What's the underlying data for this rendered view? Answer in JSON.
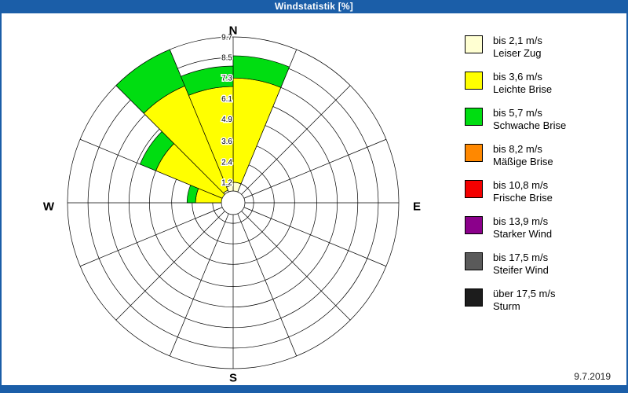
{
  "window": {
    "title": "Windstatistik [%]"
  },
  "date_label": "9.7.2019",
  "compass": {
    "north": "N",
    "east": "E",
    "south": "S",
    "west": "W"
  },
  "colors": {
    "chrome_blue": "#1b5ea8",
    "grid": "#000000"
  },
  "chart_data": {
    "type": "windrose-stacked-polar-bar",
    "title": "Windstatistik [%]",
    "units": "%",
    "max_value": 9.7,
    "ring_values": [
      1.2,
      2.4,
      3.6,
      4.9,
      6.1,
      7.3,
      8.5,
      9.7
    ],
    "ring_labels": [
      "1.2",
      "2.4",
      "3.6",
      "4.9",
      "6.1",
      "7.3",
      "8.5",
      "9.7"
    ],
    "sector_width_deg": 22.5,
    "sector_note": "each wedge spans clockwise from the named compass spoke",
    "sectors": [
      "N",
      "NNE",
      "NE",
      "ENE",
      "E",
      "ESE",
      "SE",
      "SSE",
      "S",
      "SSW",
      "SW",
      "WSW",
      "W",
      "WNW",
      "NW",
      "NNW"
    ],
    "series": [
      {
        "name": "bis 2,1 m/s",
        "label": "Leiser Zug",
        "color": "#ffffd2",
        "values": [
          1.2,
          0,
          0,
          0,
          0,
          0,
          0,
          0,
          0,
          0,
          0,
          0,
          0.4,
          0.6,
          0.8,
          1.0
        ]
      },
      {
        "name": "bis 3,6 m/s",
        "label": "Leichte Brise",
        "color": "#ffff00",
        "values": [
          6.1,
          0,
          0,
          0,
          0,
          0,
          0,
          0,
          0,
          0,
          0,
          0,
          1.8,
          4.3,
          6.6,
          5.8
        ]
      },
      {
        "name": "bis 5,7 m/s",
        "label": "Schwache Brise",
        "color": "#00dd11",
        "values": [
          1.3,
          0,
          0,
          0,
          0,
          0,
          0,
          0,
          0,
          0,
          0,
          0,
          0.5,
          1.0,
          2.3,
          1.2
        ]
      },
      {
        "name": "bis 8,2 m/s",
        "label": "Mäßige Brise",
        "color": "#ff8800",
        "values": [
          0,
          0,
          0,
          0,
          0,
          0,
          0,
          0,
          0,
          0,
          0,
          0,
          0,
          0,
          0,
          0
        ]
      },
      {
        "name": "bis 10,8 m/s",
        "label": "Frische Brise",
        "color": "#f40000",
        "values": [
          0,
          0,
          0,
          0,
          0,
          0,
          0,
          0,
          0,
          0,
          0,
          0,
          0,
          0,
          0,
          0
        ]
      },
      {
        "name": "bis 13,9 m/s",
        "label": "Starker Wind",
        "color": "#8b008b",
        "values": [
          0,
          0,
          0,
          0,
          0,
          0,
          0,
          0,
          0,
          0,
          0,
          0,
          0,
          0,
          0,
          0
        ]
      },
      {
        "name": "bis 17,5 m/s",
        "label": "Steifer Wind",
        "color": "#5a5a5a",
        "values": [
          0,
          0,
          0,
          0,
          0,
          0,
          0,
          0,
          0,
          0,
          0,
          0,
          0,
          0,
          0,
          0
        ]
      },
      {
        "name": "über 17,5 m/s",
        "label": "Sturm",
        "color": "#1c1c1c",
        "values": [
          0,
          0,
          0,
          0,
          0,
          0,
          0,
          0,
          0,
          0,
          0,
          0,
          0,
          0,
          0,
          0
        ]
      }
    ]
  }
}
